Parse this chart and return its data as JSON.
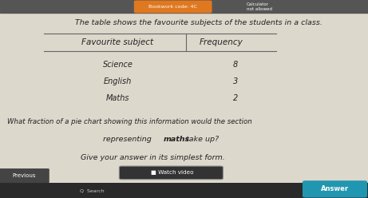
{
  "bg_color": "#ddd8cc",
  "title": "The table shows the favourite subjects of the students in a class.",
  "col1_header": "Favourite subject",
  "col2_header": "Frequency",
  "rows": [
    [
      "Science",
      "8"
    ],
    [
      "English",
      "3"
    ],
    [
      "Maths",
      "2"
    ]
  ],
  "question_line1": "What fraction of a pie chart showing this information would the section",
  "question_line2": "representing ",
  "question_bold": "maths",
  "question_line2_end": " take up?",
  "question_line3": "Give your answer in its simplest form.",
  "bookwork_code": "Bookwork code: 4C",
  "calc_label": "Calculator\nnot allowed",
  "watch_video": "■ Watch video",
  "answer_label": "Answer",
  "previous_label": "Previous",
  "top_bar_color": "#555555",
  "badge_color": "#e07820",
  "bottom_bar_color": "#555555",
  "answer_btn_color": "#2196b0",
  "watch_btn_outline": "#555555",
  "text_color": "#222222"
}
